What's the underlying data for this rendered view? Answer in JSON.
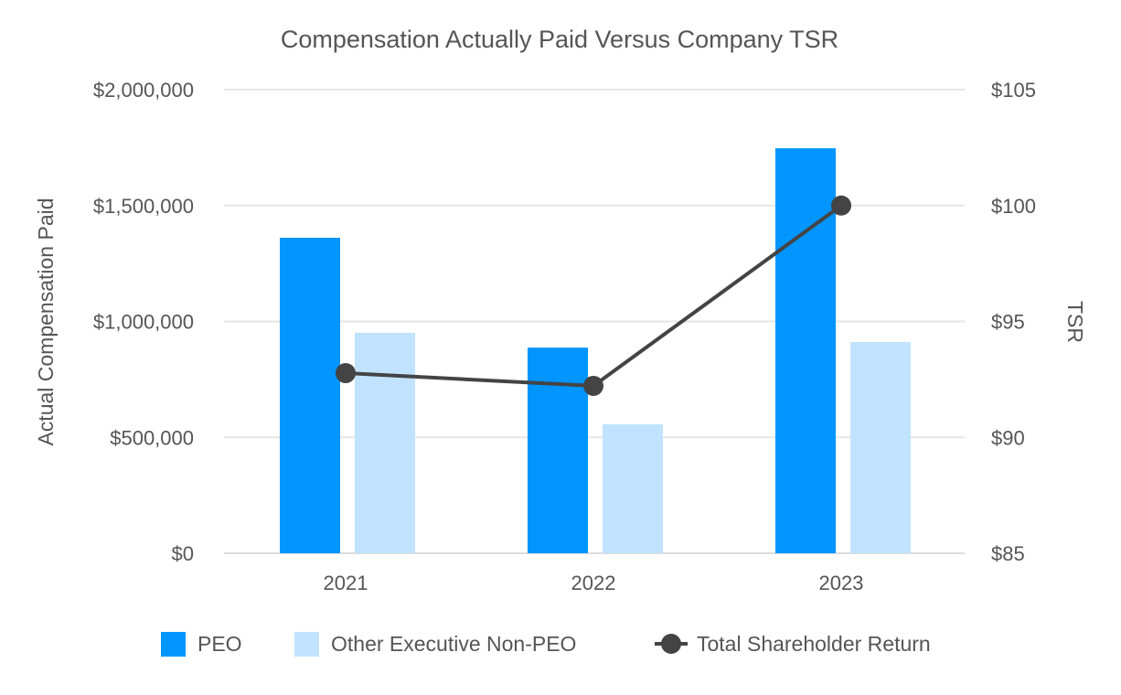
{
  "chart_data": {
    "type": "bar",
    "title": "Compensation Actually Paid Versus Company TSR",
    "categories": [
      "2021",
      "2022",
      "2023"
    ],
    "ylabel": "Actual Compensation Paid",
    "y2label": "TSR",
    "ylim": [
      0,
      2000000
    ],
    "y2lim": [
      85,
      105
    ],
    "yticks": [
      0,
      500000,
      1000000,
      1500000,
      2000000
    ],
    "ytick_labels": [
      "$0",
      "$500,000",
      "$1,000,000",
      "$1,500,000",
      "$2,000,000"
    ],
    "y2ticks": [
      85,
      90,
      95,
      100,
      105
    ],
    "y2tick_labels": [
      "$85",
      "$90",
      "$95",
      "$100",
      "$105"
    ],
    "grid": true,
    "legend_position": "bottom",
    "series": [
      {
        "name": "PEO",
        "type": "bar",
        "axis": "left",
        "color": "#0095FF",
        "values": [
          1361000,
          887000,
          1747000
        ]
      },
      {
        "name": "Other Executive Non-PEO",
        "type": "bar",
        "axis": "left",
        "color": "#C1E3FF",
        "values": [
          951000,
          556000,
          911000
        ]
      },
      {
        "name": "Total Shareholder Return",
        "type": "line",
        "axis": "right",
        "color": "#444444",
        "values": [
          92.77,
          92.22,
          100.0
        ]
      }
    ]
  }
}
